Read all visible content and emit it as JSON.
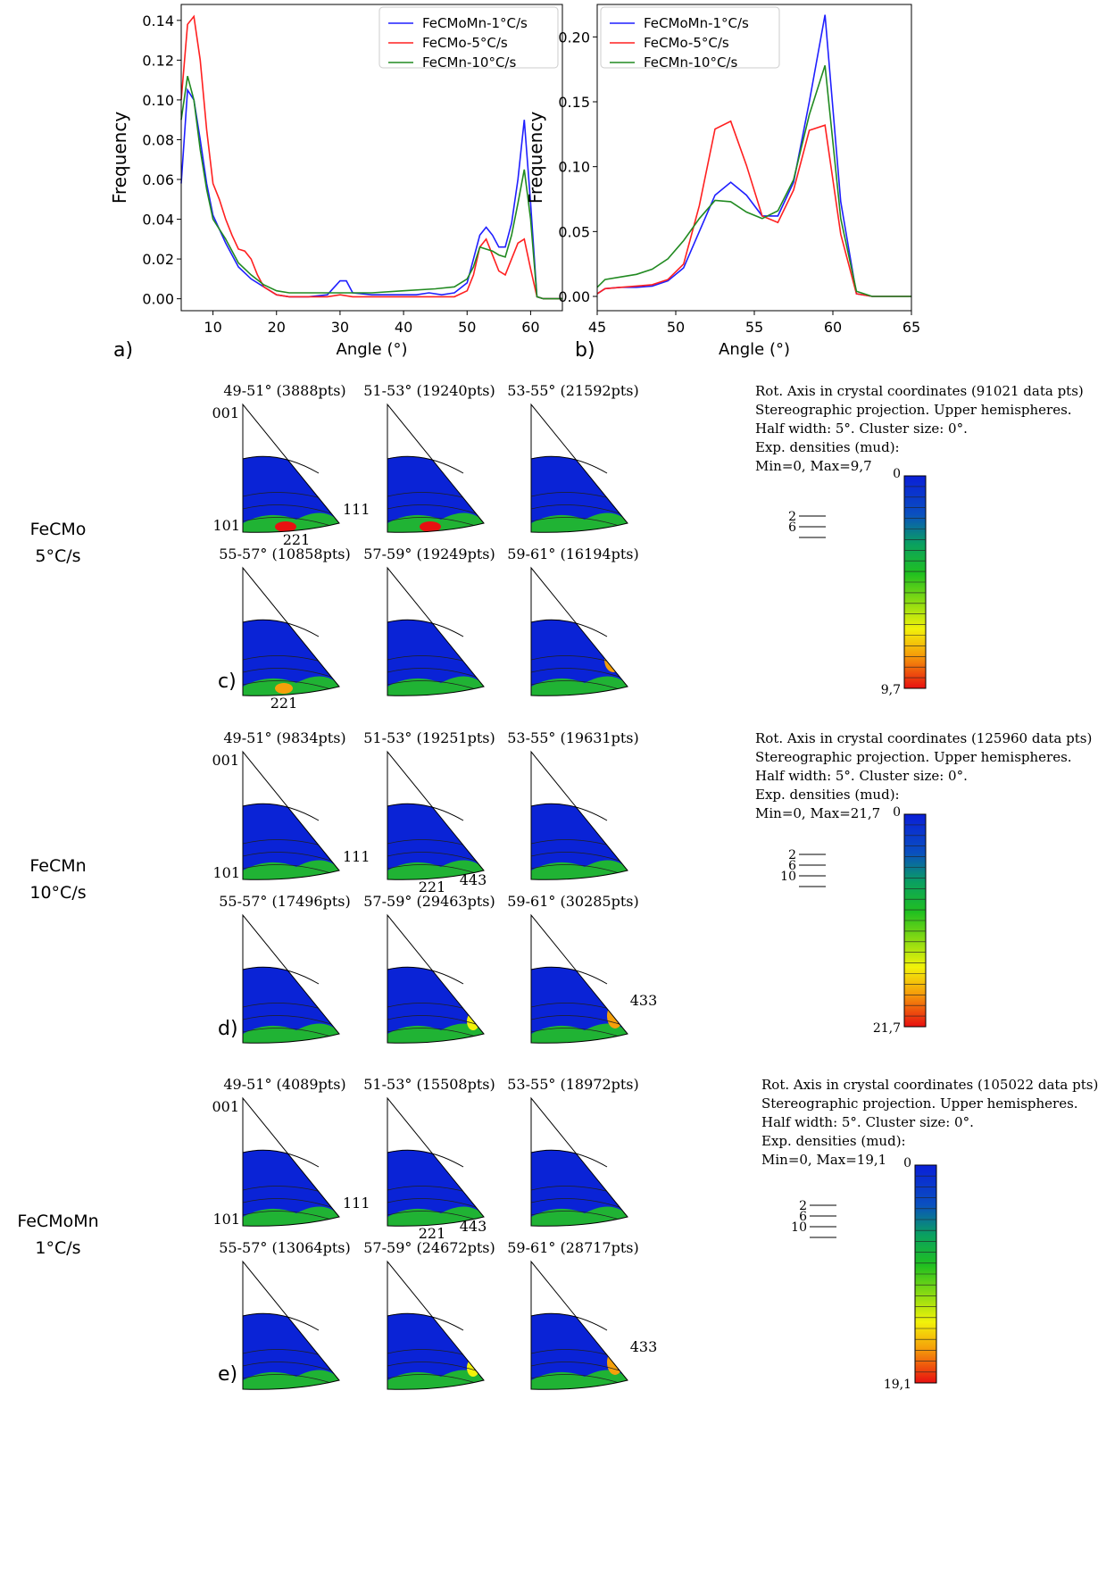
{
  "panel_labels": {
    "a": "a)",
    "b": "b)",
    "c": "c)",
    "d": "d)",
    "e": "e)"
  },
  "chart_data": [
    {
      "type": "line",
      "xlabel": "Angle (°)",
      "ylabel": "Frequency",
      "xlim": [
        5,
        65
      ],
      "ylim": [
        -0.006,
        0.148
      ],
      "xticks": [
        10,
        20,
        30,
        40,
        50,
        60
      ],
      "yticks": [
        0.0,
        0.02,
        0.04,
        0.06,
        0.08,
        0.1,
        0.12,
        0.14
      ],
      "ytick_labels": [
        "0.00",
        "0.02",
        "0.04",
        "0.06",
        "0.08",
        "0.10",
        "0.12",
        "0.14"
      ],
      "grid": false,
      "legend_position": "top-right",
      "series": [
        {
          "name": "FeCMoMn-1°C/s",
          "color": "#1f1fff",
          "x": [
            5,
            6,
            7,
            8,
            9,
            10,
            12,
            14,
            16,
            18,
            20,
            22,
            25,
            28,
            30,
            31,
            32,
            35,
            40,
            42,
            44,
            46,
            48,
            50,
            51,
            52,
            53,
            54,
            55,
            56,
            57,
            58,
            59,
            60,
            61,
            62,
            65
          ],
          "y": [
            0.058,
            0.105,
            0.1,
            0.08,
            0.058,
            0.042,
            0.028,
            0.016,
            0.01,
            0.006,
            0.002,
            0.001,
            0.001,
            0.002,
            0.009,
            0.009,
            0.003,
            0.002,
            0.002,
            0.002,
            0.003,
            0.002,
            0.003,
            0.008,
            0.02,
            0.032,
            0.036,
            0.032,
            0.026,
            0.026,
            0.038,
            0.06,
            0.09,
            0.048,
            0.001,
            0.0,
            0.0
          ]
        },
        {
          "name": "FeCMo-5°C/s",
          "color": "#ff2020",
          "x": [
            5,
            6,
            7,
            8,
            9,
            10,
            11,
            12,
            13,
            14,
            15,
            16,
            17,
            18,
            20,
            22,
            25,
            28,
            30,
            32,
            35,
            40,
            45,
            48,
            50,
            51,
            52,
            53,
            54,
            55,
            56,
            57,
            58,
            59,
            60,
            61,
            62,
            65
          ],
          "y": [
            0.1,
            0.138,
            0.142,
            0.12,
            0.085,
            0.058,
            0.05,
            0.04,
            0.032,
            0.025,
            0.024,
            0.02,
            0.012,
            0.006,
            0.002,
            0.001,
            0.001,
            0.001,
            0.002,
            0.001,
            0.001,
            0.001,
            0.001,
            0.001,
            0.004,
            0.012,
            0.026,
            0.03,
            0.022,
            0.014,
            0.012,
            0.02,
            0.028,
            0.03,
            0.015,
            0.001,
            0.0,
            0.0
          ]
        },
        {
          "name": "FeCMn-10°C/s",
          "color": "#218a21",
          "x": [
            5,
            6,
            7,
            8,
            9,
            10,
            12,
            14,
            16,
            18,
            20,
            22,
            25,
            30,
            35,
            40,
            45,
            48,
            50,
            51,
            52,
            53,
            54,
            55,
            56,
            57,
            58,
            59,
            60,
            61,
            62,
            65
          ],
          "y": [
            0.09,
            0.112,
            0.1,
            0.075,
            0.055,
            0.04,
            0.03,
            0.018,
            0.012,
            0.007,
            0.004,
            0.003,
            0.003,
            0.003,
            0.003,
            0.004,
            0.005,
            0.006,
            0.01,
            0.016,
            0.026,
            0.025,
            0.024,
            0.022,
            0.021,
            0.032,
            0.048,
            0.065,
            0.04,
            0.001,
            0.0,
            0.0
          ]
        }
      ]
    },
    {
      "type": "line",
      "xlabel": "Angle (°)",
      "ylabel": "Frequency",
      "xlim": [
        45,
        65
      ],
      "ylim": [
        -0.011,
        0.225
      ],
      "xticks": [
        45,
        50,
        55,
        60,
        65
      ],
      "yticks": [
        0.0,
        0.05,
        0.1,
        0.15,
        0.2
      ],
      "ytick_labels": [
        "0.00",
        "0.05",
        "0.10",
        "0.15",
        "0.20"
      ],
      "grid": false,
      "legend_position": "top-left",
      "series": [
        {
          "name": "FeCMoMn-1°C/s",
          "color": "#1f1fff",
          "x": [
            45,
            45.5,
            46.5,
            47.5,
            48.5,
            49.5,
            50.5,
            51.5,
            52.5,
            53.5,
            54.5,
            55.5,
            56.5,
            57.5,
            58.5,
            59.5,
            60.5,
            61.5,
            62.5,
            65
          ],
          "y": [
            0.002,
            0.006,
            0.007,
            0.007,
            0.008,
            0.012,
            0.022,
            0.05,
            0.078,
            0.088,
            0.078,
            0.062,
            0.062,
            0.088,
            0.15,
            0.217,
            0.073,
            0.002,
            0.0,
            0.0
          ]
        },
        {
          "name": "FeCMo-5°C/s",
          "color": "#ff2020",
          "x": [
            45,
            45.5,
            46.5,
            47.5,
            48.5,
            49.5,
            50.5,
            51.5,
            52.5,
            53.5,
            54.5,
            55.5,
            56.5,
            57.5,
            58.5,
            59.5,
            60.5,
            61.5,
            62.5,
            65
          ],
          "y": [
            0.002,
            0.006,
            0.007,
            0.008,
            0.009,
            0.013,
            0.025,
            0.07,
            0.129,
            0.135,
            0.101,
            0.062,
            0.057,
            0.082,
            0.128,
            0.132,
            0.048,
            0.002,
            0.0,
            0.0
          ]
        },
        {
          "name": "FeCMn-10°C/s",
          "color": "#218a21",
          "x": [
            45,
            45.5,
            46.5,
            47.5,
            48.5,
            49.5,
            50.5,
            51.5,
            52.5,
            53.5,
            54.5,
            55.5,
            56.5,
            57.5,
            58.5,
            59.5,
            60.5,
            61.5,
            62.5,
            65
          ],
          "y": [
            0.007,
            0.013,
            0.015,
            0.017,
            0.021,
            0.029,
            0.043,
            0.06,
            0.074,
            0.073,
            0.065,
            0.06,
            0.066,
            0.09,
            0.14,
            0.178,
            0.06,
            0.004,
            0.0,
            0.0
          ]
        }
      ]
    }
  ],
  "pole_figure_groups": [
    {
      "row_label_line1": "FeCMo",
      "row_label_line2": "5°C/s",
      "panel": "c)",
      "titles": [
        "49-51° (3888pts)",
        "51-53° (19240pts)",
        "53-55° (21592pts)",
        "55-57° (10858pts)",
        "57-59° (19249pts)",
        "59-61° (16194pts)"
      ],
      "annotations": {
        "001": "001",
        "101": "101",
        "111": "111",
        "221a": "221",
        "221b": "221"
      },
      "info": [
        "Rot. Axis in crystal coordinates (91021 data pts)",
        "Stereographic projection. Upper hemispheres.",
        "Half width: 5°. Cluster size: 0°.",
        "Exp. densities (mud):",
        "Min=0, Max=9,7"
      ],
      "colorbar_min": "0",
      "colorbar_max": "9,7",
      "contour_levels": [
        "2",
        "6"
      ]
    },
    {
      "row_label_line1": "FeCMn",
      "row_label_line2": "10°C/s",
      "panel": "d)",
      "titles": [
        "49-51° (9834pts)",
        "51-53° (19251pts)",
        "53-55° (19631pts)",
        "55-57° (17496pts)",
        "57-59° (29463pts)",
        "59-61° (30285pts)"
      ],
      "annotations": {
        "001": "001",
        "101": "101",
        "111": "111",
        "221": "221",
        "443": "443",
        "433": "433"
      },
      "info": [
        "Rot. Axis in crystal coordinates (125960 data pts)",
        "Stereographic projection. Upper hemispheres.",
        "Half width: 5°. Cluster size: 0°.",
        "Exp. densities (mud):",
        "Min=0, Max=21,7"
      ],
      "colorbar_min": "0",
      "colorbar_max": "21,7",
      "contour_levels": [
        "2",
        "6",
        "10"
      ]
    },
    {
      "row_label_line1": "FeCMoMn",
      "row_label_line2": "1°C/s",
      "panel": "e)",
      "titles": [
        "49-51° (4089pts)",
        "51-53° (15508pts)",
        "53-55° (18972pts)",
        "55-57° (13064pts)",
        "57-59° (24672pts)",
        "59-61° (28717pts)"
      ],
      "annotations": {
        "001": "001",
        "101": "101",
        "111": "111",
        "221": "221",
        "443": "443",
        "433": "433"
      },
      "info": [
        "Rot. Axis in crystal coordinates (105022 data pts)",
        "Stereographic projection. Upper hemispheres.",
        "Half width: 5°. Cluster size: 0°.",
        "Exp. densities (mud):",
        "Min=0, Max=19,1"
      ],
      "colorbar_min": "0",
      "colorbar_max": "19,1",
      "contour_levels": [
        "2",
        "6",
        "10"
      ]
    }
  ],
  "colors": {
    "density_low": "#0a23d6",
    "density_mid": "#22c322",
    "density_high_yellow": "#f2f20a",
    "density_max": "#e81010"
  }
}
